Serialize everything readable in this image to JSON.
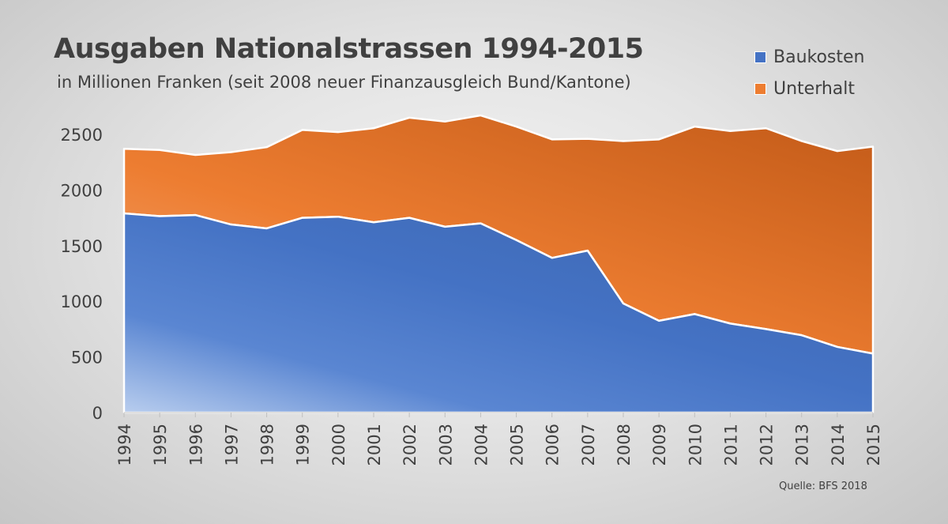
{
  "chart_data": {
    "type": "area",
    "stacked": true,
    "title": "Ausgaben Nationalstrassen 1994-2015",
    "subtitle": "in Millionen Franken (seit 2008 neuer Finanzausgleich Bund/Kantone)",
    "source": "Quelle: BFS 2018",
    "categories": [
      "1994",
      "1995",
      "1996",
      "1997",
      "1998",
      "1999",
      "2000",
      "2001",
      "2002",
      "2003",
      "2004",
      "2005",
      "2006",
      "2007",
      "2008",
      "2009",
      "2010",
      "2011",
      "2012",
      "2013",
      "2014",
      "2015"
    ],
    "series": [
      {
        "name": "Baukosten",
        "color": "#4472C4",
        "values": [
          1790,
          1765,
          1775,
          1690,
          1655,
          1750,
          1760,
          1710,
          1750,
          1670,
          1700,
          1550,
          1390,
          1455,
          980,
          825,
          885,
          800,
          750,
          695,
          590,
          530
        ]
      },
      {
        "name": "Unterhalt",
        "color": "#ED7D31",
        "values": [
          580,
          595,
          540,
          650,
          730,
          790,
          760,
          845,
          900,
          945,
          970,
          1020,
          1065,
          1005,
          1460,
          1630,
          1685,
          1730,
          1805,
          1745,
          1760,
          1860
        ]
      }
    ],
    "yticks": [
      0,
      500,
      1000,
      1500,
      2000,
      2500
    ],
    "ylim": [
      0,
      2700
    ],
    "legend_position": "top-right",
    "grid": false
  }
}
